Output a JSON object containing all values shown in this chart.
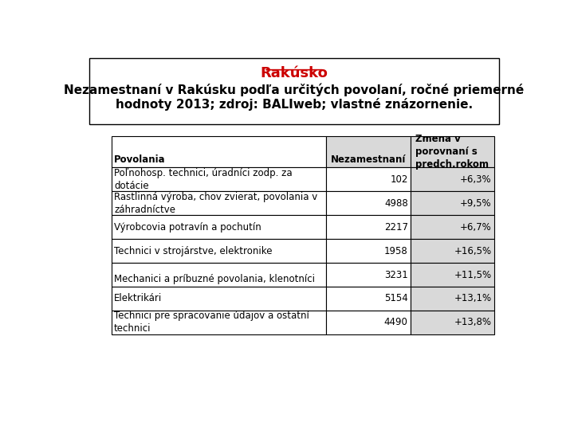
{
  "title": "Rakúsko",
  "subtitle_line1": "Nezamestnaní v Rakúsku podľa určitých povolaní, ročné priemerné",
  "subtitle_line2": "hodnoty 2013; zdroj: BALIweb; vlastné znázornenie.",
  "col_header1": "Nezamestnaní",
  "col_header2_line1": "Zmena v",
  "col_header2_line2": "porovnaní s",
  "col_header2_line3": "predch.rokom",
  "row_header": "Povolania",
  "rows": [
    {
      "label_line1": "Poľnohosp. technici, úradníci zodp. za",
      "label_line2": "dotácie",
      "value": "102",
      "change": "+6,3%"
    },
    {
      "label_line1": "Rastlinná výroba, chov zvierat, povolania v",
      "label_line2": "záhradníctve",
      "value": "4988",
      "change": "+9,5%"
    },
    {
      "label_line1": "Výrobcovia potravín a pochutín",
      "label_line2": "",
      "value": "2217",
      "change": "+6,7%"
    },
    {
      "label_line1": "Technici v strojárstve, elektronike",
      "label_line2": "",
      "value": "1958",
      "change": "+16,5%"
    },
    {
      "label_line1": "",
      "label_line2": "Mechanici a príbuzné povolania, klenotníci",
      "value": "3231",
      "change": "+11,5%"
    },
    {
      "label_line1": "Elektrikári",
      "label_line2": "",
      "value": "5154",
      "change": "+13,1%"
    },
    {
      "label_line1": "Technici pre spracovanie údajov a ostatní",
      "label_line2": "technici",
      "value": "4490",
      "change": "+13,8%"
    }
  ],
  "background_color": "#ffffff",
  "title_color": "#cc0000",
  "table_border_color": "#000000",
  "header_bg_color": "#d9d9d9",
  "cell_bg_white": "#ffffff",
  "font_size_title": 13,
  "font_size_subtitle": 11,
  "font_size_table": 8.5
}
